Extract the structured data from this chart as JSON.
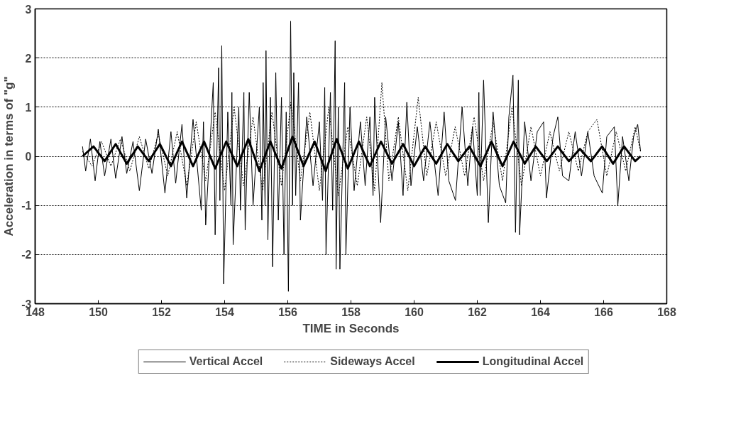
{
  "chart_data": {
    "type": "line",
    "xlabel": "TIME in Seconds",
    "ylabel": "Acceleration in terms of \"g\"",
    "xlim": [
      148,
      168
    ],
    "xticks": [
      148,
      150,
      152,
      154,
      156,
      158,
      160,
      162,
      164,
      166,
      168
    ],
    "ylim": [
      -3,
      3
    ],
    "yticks": [
      -3,
      -2,
      -1,
      0,
      1,
      2,
      3
    ],
    "grid": "y",
    "legend": "bottom",
    "marker": "none",
    "series": [
      {
        "name": "Vertical Accel",
        "color": "#000000",
        "line_style": "solid",
        "x": [
          149.5,
          149.6,
          149.75,
          149.9,
          150.05,
          150.2,
          150.4,
          150.55,
          150.75,
          150.9,
          151.1,
          151.3,
          151.5,
          151.7,
          151.9,
          152.11,
          152.3,
          152.45,
          152.65,
          152.8,
          153.0,
          153.26,
          153.33,
          153.4,
          153.64,
          153.7,
          153.81,
          153.85,
          153.91,
          153.97,
          154.1,
          154.2,
          154.23,
          154.27,
          154.45,
          154.5,
          154.61,
          154.65,
          154.78,
          154.9,
          155.1,
          155.18,
          155.22,
          155.28,
          155.31,
          155.37,
          155.45,
          155.52,
          155.62,
          155.7,
          155.8,
          155.88,
          155.95,
          156.02,
          156.09,
          156.15,
          156.19,
          156.25,
          156.34,
          156.4,
          156.6,
          156.8,
          157.0,
          157.1,
          157.17,
          157.21,
          157.35,
          157.42,
          157.5,
          157.53,
          157.6,
          157.65,
          157.8,
          157.84,
          157.97,
          158.1,
          158.3,
          158.45,
          158.6,
          158.7,
          158.75,
          158.94,
          159.1,
          159.3,
          159.5,
          159.65,
          159.77,
          159.9,
          160.1,
          160.3,
          160.5,
          160.76,
          160.95,
          161.1,
          161.31,
          161.52,
          161.7,
          161.85,
          162.0,
          162.05,
          162.09,
          162.2,
          162.35,
          162.5,
          162.7,
          162.9,
          163.0,
          163.13,
          163.21,
          163.3,
          163.34,
          163.5,
          163.7,
          163.9,
          164.1,
          164.19,
          164.4,
          164.55,
          164.7,
          164.9,
          165.1,
          165.3,
          165.5,
          165.7,
          165.96,
          166.1,
          166.34,
          166.45,
          166.6,
          166.8,
          166.95,
          167.08,
          167.17
        ],
        "values": [
          0.2,
          -0.3,
          0.35,
          -0.5,
          0.3,
          -0.4,
          0.35,
          -0.45,
          0.4,
          -0.35,
          0.3,
          -0.7,
          0.35,
          -0.35,
          0.55,
          -0.75,
          0.5,
          -0.55,
          0.65,
          -0.85,
          0.75,
          -1.1,
          0.7,
          -1.4,
          1.5,
          -1.6,
          1.8,
          -0.9,
          2.25,
          -2.6,
          0.9,
          -1.0,
          1.3,
          -1.8,
          1.0,
          -1.1,
          1.3,
          -1.5,
          1.3,
          -1.0,
          1.0,
          -1.3,
          1.5,
          -1.0,
          2.15,
          -1.7,
          1.2,
          -2.25,
          1.7,
          -1.3,
          1.2,
          -2.0,
          0.9,
          -2.75,
          2.75,
          -1.0,
          1.7,
          -0.8,
          1.5,
          -1.3,
          0.8,
          -0.6,
          0.7,
          -0.9,
          1.4,
          -2.0,
          1.3,
          -1.1,
          2.35,
          -2.3,
          1.0,
          -2.3,
          1.5,
          -2.0,
          1.0,
          -0.7,
          0.7,
          -0.6,
          0.8,
          -0.8,
          1.2,
          -1.35,
          0.8,
          -0.5,
          0.7,
          -0.8,
          1.1,
          -0.6,
          0.6,
          -0.5,
          0.7,
          -0.8,
          0.9,
          -0.5,
          -0.9,
          1.0,
          -0.6,
          0.6,
          -0.8,
          1.3,
          -0.8,
          1.55,
          -1.35,
          0.9,
          -0.6,
          -0.95,
          0.8,
          1.65,
          -1.55,
          1.55,
          -1.6,
          0.7,
          -0.5,
          0.5,
          0.7,
          -0.85,
          0.4,
          0.8,
          -0.4,
          -0.5,
          0.5,
          -0.4,
          0.5,
          -0.4,
          -0.75,
          0.4,
          0.6,
          -1.0,
          0.4,
          -0.5,
          0.4,
          0.65,
          0.1
        ]
      },
      {
        "name": "Sideways Accel",
        "color": "#000000",
        "line_style": "dotted",
        "x": [
          149.5,
          149.8,
          150.1,
          150.4,
          150.7,
          151.0,
          151.3,
          151.6,
          151.9,
          152.2,
          152.5,
          152.8,
          153.1,
          153.4,
          153.7,
          154.0,
          154.3,
          154.6,
          154.9,
          155.2,
          155.5,
          155.8,
          156.1,
          156.4,
          156.7,
          157.0,
          157.3,
          157.6,
          157.9,
          158.2,
          158.5,
          158.75,
          158.98,
          159.2,
          159.5,
          159.8,
          160.13,
          160.4,
          160.7,
          161.0,
          161.3,
          161.6,
          161.9,
          162.2,
          162.5,
          162.8,
          163.1,
          163.4,
          163.7,
          164.0,
          164.3,
          164.6,
          164.9,
          165.2,
          165.5,
          165.79,
          166.1,
          166.4,
          166.7,
          167.0,
          167.17
        ],
        "values": [
          0.1,
          -0.2,
          0.3,
          -0.2,
          0.35,
          -0.3,
          0.4,
          -0.25,
          0.45,
          -0.4,
          0.5,
          -0.6,
          0.7,
          -0.5,
          0.9,
          -0.7,
          1.0,
          -0.6,
          0.8,
          -0.7,
          0.9,
          -0.6,
          1.1,
          -0.5,
          0.9,
          -0.7,
          1.0,
          -0.8,
          0.6,
          -0.6,
          0.8,
          -0.7,
          1.5,
          -0.5,
          0.8,
          -0.7,
          1.2,
          -0.4,
          0.7,
          -0.4,
          0.6,
          -0.4,
          0.8,
          -0.5,
          0.7,
          -0.5,
          1.0,
          -0.6,
          0.6,
          -0.4,
          0.5,
          -0.3,
          0.5,
          -0.3,
          0.5,
          0.75,
          -0.4,
          0.5,
          -0.3,
          0.6,
          0.1
        ]
      },
      {
        "name": "Longitudinal Accel",
        "color": "#000000",
        "line_style": "solid",
        "x": [
          149.5,
          149.85,
          150.2,
          150.55,
          150.9,
          151.25,
          151.6,
          151.95,
          152.3,
          152.65,
          153.0,
          153.35,
          153.7,
          154.05,
          154.4,
          154.75,
          155.1,
          155.45,
          155.8,
          156.15,
          156.5,
          156.85,
          157.2,
          157.55,
          157.9,
          158.25,
          158.6,
          158.95,
          159.3,
          159.65,
          160.0,
          160.35,
          160.7,
          161.05,
          161.4,
          161.75,
          162.1,
          162.45,
          162.8,
          163.15,
          163.5,
          163.85,
          164.2,
          164.55,
          164.9,
          165.25,
          165.6,
          165.95,
          166.3,
          166.65,
          167.0,
          167.17
        ],
        "values": [
          0.0,
          0.2,
          -0.1,
          0.25,
          -0.15,
          0.2,
          -0.1,
          0.25,
          -0.2,
          0.3,
          -0.2,
          0.3,
          -0.25,
          0.3,
          -0.2,
          0.35,
          -0.3,
          0.3,
          -0.25,
          0.4,
          -0.2,
          0.3,
          -0.3,
          0.35,
          -0.25,
          0.3,
          -0.2,
          0.3,
          -0.15,
          0.25,
          -0.2,
          0.2,
          -0.15,
          0.25,
          -0.1,
          0.2,
          -0.2,
          0.3,
          -0.2,
          0.3,
          -0.15,
          0.2,
          -0.1,
          0.2,
          -0.1,
          0.15,
          -0.1,
          0.2,
          -0.15,
          0.2,
          -0.1,
          0.0
        ]
      }
    ]
  }
}
